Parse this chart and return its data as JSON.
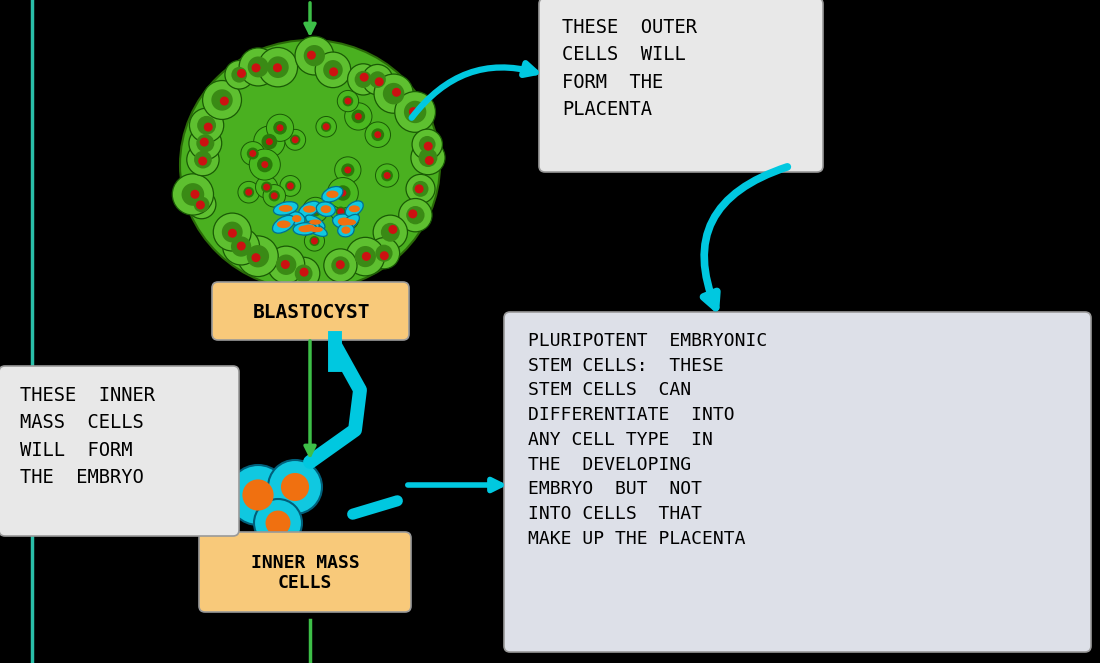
{
  "background_color": "#000000",
  "blastocyst_label": "BLASTOCYST",
  "blastocyst_label_bg": "#f8c97a",
  "inner_mass_label": "INNER MASS\nCELLS",
  "inner_mass_label_bg": "#f8c97a",
  "outer_cells_text": "THESE  OUTER\nCELLS  WILL\nFORM  THE\nPLACENTA",
  "outer_cells_bg": "#e8e8e8",
  "inner_cells_text": "THESE  INNER\nMASS  CELLS\nWILL  FORM\nTHE  EMBRYO",
  "inner_cells_bg": "#e8e8e8",
  "pluripotent_text": "PLURIPOTENT  EMBRYONIC\nSTEM CELLS:  THESE\nSTEM CELLS  CAN\nDIFFERENTIATE  INTO\nANY CELL TYPE  IN\nTHE  DEVELOPING\nEMBRYO  BUT  NOT\nINTO CELLS  THAT\nMAKE UP THE PLACENTA",
  "pluripotent_bg": "#dde0e8",
  "arrow_color": "#00c8e0",
  "green_arrow_color": "#3dbf48",
  "teal_line_color": "#2abfaa",
  "font_family": "monospace"
}
